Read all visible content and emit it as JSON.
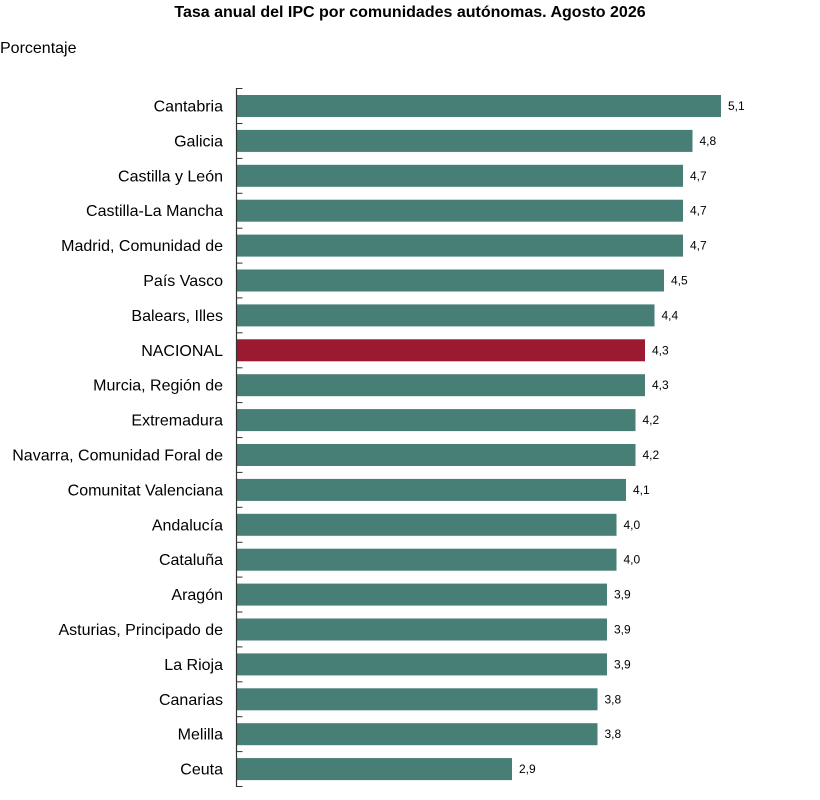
{
  "chart_data": {
    "type": "bar",
    "orientation": "horizontal",
    "title": "Tasa anual del IPC por comunidades autónomas. Agosto 2026",
    "ylabel": "Porcentaje",
    "xlim": [
      0,
      5.1
    ],
    "grid": false,
    "colors": {
      "default": "#477e75",
      "highlight": "#9b1a32"
    },
    "highlight_category": "NACIONAL",
    "categories": [
      "Cantabria",
      "Galicia",
      "Castilla y León",
      "Castilla-La Mancha",
      "Madrid, Comunidad de",
      "País Vasco",
      "Balears, Illes",
      "NACIONAL",
      "Murcia, Región de",
      "Extremadura",
      "Navarra, Comunidad Foral de",
      "Comunitat Valenciana",
      "Andalucía",
      "Cataluña",
      "Aragón",
      "Asturias, Principado de",
      "La Rioja",
      "Canarias",
      "Melilla",
      "Ceuta"
    ],
    "values": [
      5.1,
      4.8,
      4.7,
      4.7,
      4.7,
      4.5,
      4.4,
      4.3,
      4.3,
      4.2,
      4.2,
      4.1,
      4.0,
      4.0,
      3.9,
      3.9,
      3.9,
      3.8,
      3.8,
      2.9
    ],
    "value_labels": [
      "5,1",
      "4,8",
      "4,7",
      "4,7",
      "4,7",
      "4,5",
      "4,4",
      "4,3",
      "4,3",
      "4,2",
      "4,2",
      "4,1",
      "4,0",
      "4,0",
      "3,9",
      "3,9",
      "3,9",
      "3,8",
      "3,8",
      "2,9"
    ]
  }
}
